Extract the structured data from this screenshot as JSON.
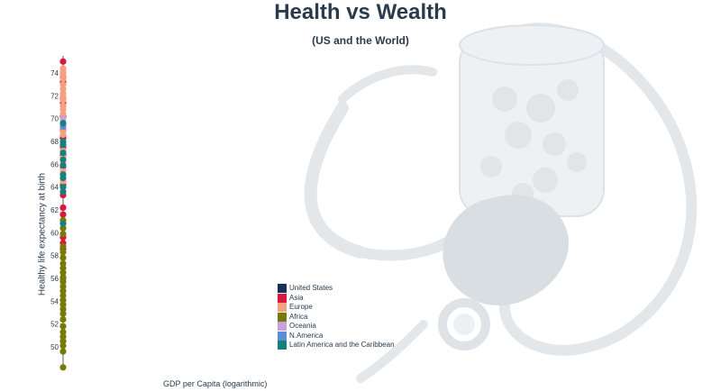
{
  "title": "Health vs Wealth",
  "subtitle": "(US and the World)",
  "chart_data": {
    "type": "scatter",
    "title": "Health vs Wealth",
    "subtitle": "(US and the World)",
    "xlabel": "GDP per Capita (logarithmic)",
    "ylabel": "Healthy life expectancy at birth",
    "x_scale": "log",
    "ylim": [
      48,
      75.5
    ],
    "y_ticks": [
      50,
      52,
      54,
      56,
      58,
      60,
      62,
      64,
      66,
      68,
      70,
      72,
      74
    ],
    "grid": false,
    "legend_placement": "lower-center",
    "series": [
      {
        "name": "United States",
        "color": "#1a2e5c",
        "values": [
          68.3
        ]
      },
      {
        "name": "Asia",
        "color": "#d7193f",
        "values": [
          75.0,
          73.6,
          73.2,
          71.8,
          71.4,
          70.2,
          69.0,
          68.4,
          67.5,
          66.8,
          65.8,
          64.2,
          63.3,
          62.2,
          61.6,
          59.6,
          59.1,
          58.6,
          56.0
        ]
      },
      {
        "name": "Europe",
        "color": "#f5a07e",
        "values": [
          74.4,
          74.1,
          73.9,
          73.5,
          73.0,
          72.6,
          72.2,
          71.9,
          71.6,
          71.1,
          70.8,
          70.4,
          69.9,
          69.4,
          68.9,
          68.6,
          67.9,
          67.2,
          66.6,
          66.1,
          65.4,
          64.5
        ]
      },
      {
        "name": "Africa",
        "color": "#767a07",
        "values": [
          61.1,
          60.4,
          59.9,
          58.8,
          58.3,
          57.8,
          57.3,
          56.9,
          56.5,
          56.1,
          55.7,
          55.3,
          54.9,
          54.5,
          54.1,
          53.7,
          53.3,
          52.9,
          52.4,
          51.8,
          51.3,
          50.9,
          50.5,
          50.1,
          49.6,
          48.2
        ]
      },
      {
        "name": "Oceania",
        "color": "#c9a0dc",
        "values": [
          70.0
        ]
      },
      {
        "name": "N.America",
        "color": "#5b8ed6",
        "values": [
          69.3
        ]
      },
      {
        "name": "Latin America and the Caribbean",
        "color": "#17807e",
        "values": [
          69.6,
          68.0,
          67.7,
          67.0,
          66.4,
          65.9,
          65.1,
          64.8,
          64.0,
          63.6,
          60.8
        ]
      }
    ]
  }
}
